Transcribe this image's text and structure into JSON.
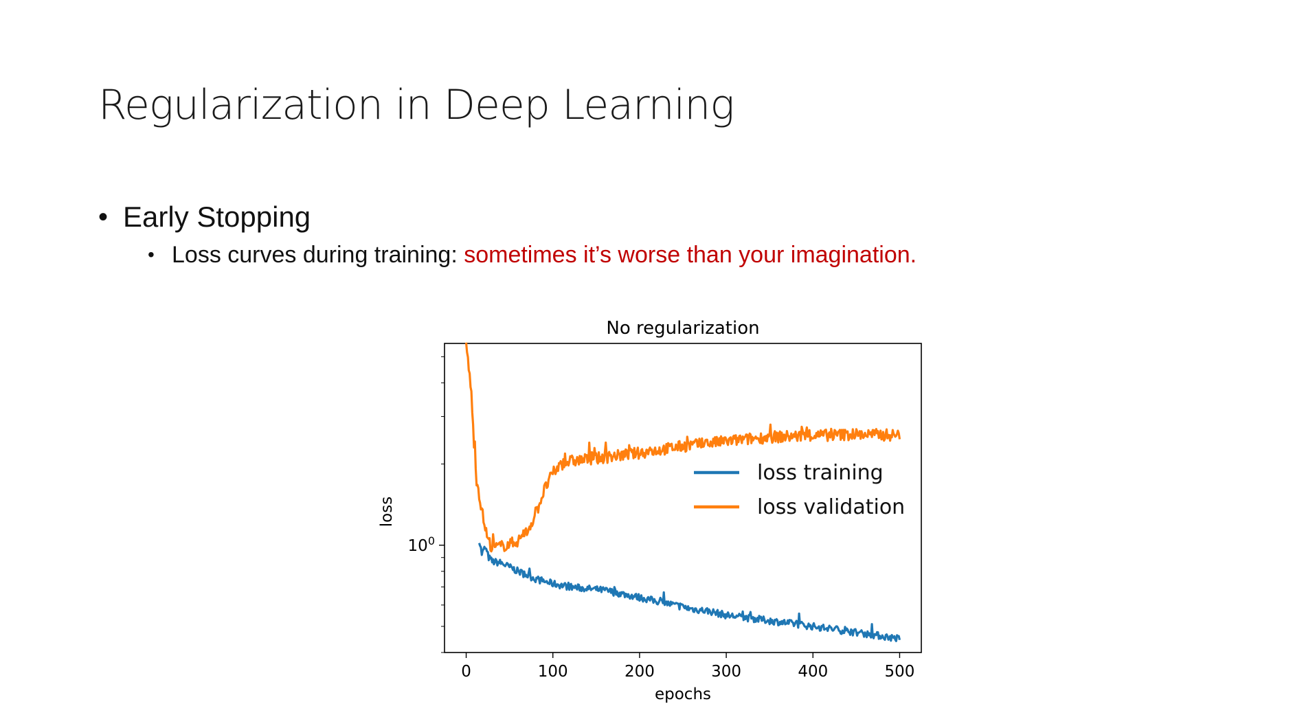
{
  "slide": {
    "title": "Regularization in Deep Learning",
    "bullet1": "Early Stopping",
    "bullet2_prefix": "Loss curves during training: ",
    "bullet2_highlight": "sometimes it’s worse than your imagination.",
    "highlight_color": "#c00000"
  },
  "chart_data": {
    "type": "line",
    "title": "No regularization",
    "xlabel": "epochs",
    "ylabel": "loss",
    "yscale": "log",
    "xlim": [
      -25,
      525
    ],
    "ylim": [
      0.4,
      5.6
    ],
    "xticks": [
      0,
      100,
      200,
      300,
      400,
      500
    ],
    "yticks": [
      {
        "value": 1,
        "label": "10",
        "sup": "0"
      }
    ],
    "legend_position": "center-right",
    "series": [
      {
        "name": "loss training",
        "color": "#1f77b4",
        "points": [
          [
            15,
            1.05
          ],
          [
            18,
            0.93
          ],
          [
            22,
            0.98
          ],
          [
            26,
            0.9
          ],
          [
            30,
            0.87
          ],
          [
            40,
            0.86
          ],
          [
            60,
            0.8
          ],
          [
            80,
            0.75
          ],
          [
            100,
            0.72
          ],
          [
            120,
            0.7
          ],
          [
            140,
            0.69
          ],
          [
            160,
            0.68
          ],
          [
            180,
            0.66
          ],
          [
            200,
            0.64
          ],
          [
            220,
            0.62
          ],
          [
            240,
            0.6
          ],
          [
            260,
            0.58
          ],
          [
            280,
            0.57
          ],
          [
            300,
            0.55
          ],
          [
            320,
            0.54
          ],
          [
            340,
            0.53
          ],
          [
            360,
            0.52
          ],
          [
            380,
            0.51
          ],
          [
            400,
            0.5
          ],
          [
            420,
            0.49
          ],
          [
            440,
            0.48
          ],
          [
            460,
            0.47
          ],
          [
            480,
            0.46
          ],
          [
            500,
            0.45
          ]
        ],
        "noise": 0.03
      },
      {
        "name": "loss validation",
        "color": "#ff7f0e",
        "points": [
          [
            0,
            5.5
          ],
          [
            3,
            4.6
          ],
          [
            6,
            3.6
          ],
          [
            9,
            2.4
          ],
          [
            12,
            1.75
          ],
          [
            15,
            1.55
          ],
          [
            18,
            1.35
          ],
          [
            21,
            1.2
          ],
          [
            25,
            1.05
          ],
          [
            30,
            0.98
          ],
          [
            40,
            0.99
          ],
          [
            50,
            1.01
          ],
          [
            60,
            1.04
          ],
          [
            70,
            1.12
          ],
          [
            80,
            1.3
          ],
          [
            90,
            1.6
          ],
          [
            100,
            1.85
          ],
          [
            110,
            2.0
          ],
          [
            120,
            2.05
          ],
          [
            150,
            2.1
          ],
          [
            200,
            2.2
          ],
          [
            250,
            2.33
          ],
          [
            300,
            2.43
          ],
          [
            350,
            2.52
          ],
          [
            400,
            2.55
          ],
          [
            450,
            2.58
          ],
          [
            500,
            2.56
          ]
        ],
        "noise": 0.05
      }
    ]
  }
}
